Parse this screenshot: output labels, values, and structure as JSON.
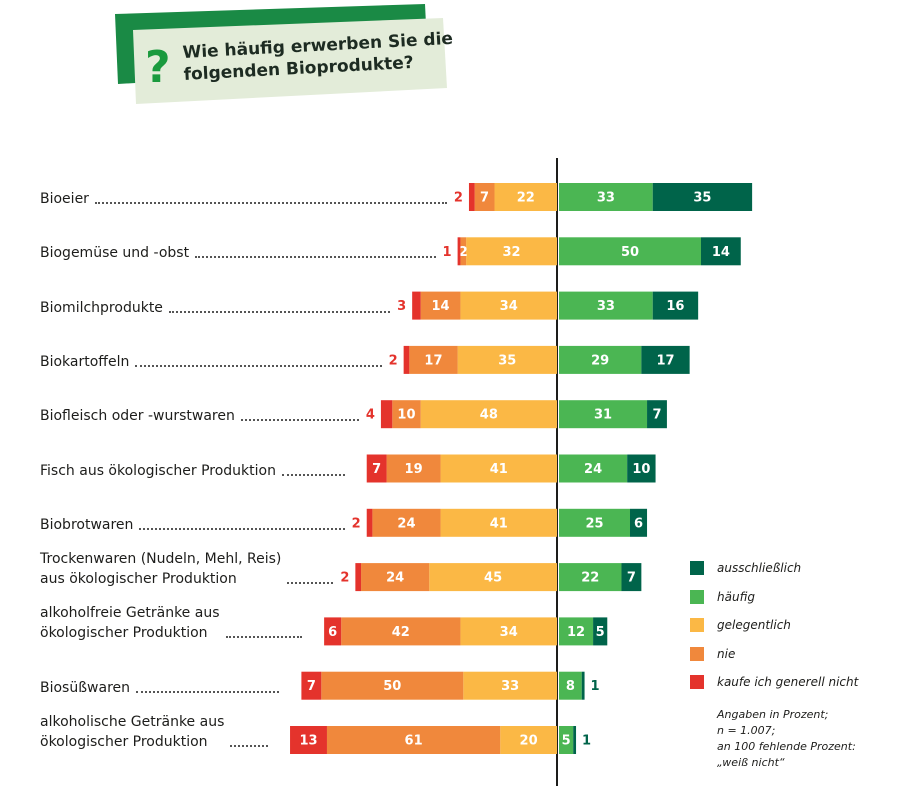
{
  "chart_data": {
    "type": "diverging-bar",
    "title_mark": "?",
    "title": "Wie häufig erwerben Sie die\nfolgenden Bioprodukte?",
    "categories": [
      "Bioeier",
      "Biogemüse und -obst",
      "Biomilchprodukte",
      "Biokartoffeln",
      "Biofleisch oder -wurstwaren",
      "Fisch aus ökologischer Produktion",
      "Biobrotwaren",
      "Trockenwaren (Nudeln, Mehl, Reis)\naus ökologischer Produktion",
      "alkoholfreie Getränke aus\nökologischer Produktion",
      "Biosüßwaren",
      "alkoholische Getränke aus\nökologischer Produktion"
    ],
    "series": [
      {
        "name": "kaufe ich generell nicht",
        "color": "#e4332c",
        "side": "left",
        "values": [
          2,
          1,
          3,
          2,
          4,
          7,
          2,
          2,
          6,
          7,
          13
        ]
      },
      {
        "name": "nie",
        "color": "#f0883c",
        "side": "left",
        "values": [
          7,
          2,
          14,
          17,
          10,
          19,
          24,
          24,
          42,
          50,
          61
        ]
      },
      {
        "name": "gelegentlich",
        "color": "#fbb845",
        "side": "left",
        "values": [
          22,
          32,
          34,
          35,
          48,
          41,
          41,
          45,
          34,
          33,
          20
        ]
      },
      {
        "name": "häufig",
        "color": "#4bb653",
        "side": "right",
        "values": [
          33,
          50,
          33,
          29,
          31,
          24,
          25,
          22,
          12,
          8,
          5
        ]
      },
      {
        "name": "ausschließlich",
        "color": "#00644a",
        "side": "right",
        "values": [
          35,
          14,
          16,
          17,
          7,
          10,
          6,
          7,
          5,
          1,
          1
        ]
      }
    ],
    "note": "Angaben in Prozent;\nn = 1.007;\nan 100 fehlende Prozent:\n„weiß nicht“"
  }
}
